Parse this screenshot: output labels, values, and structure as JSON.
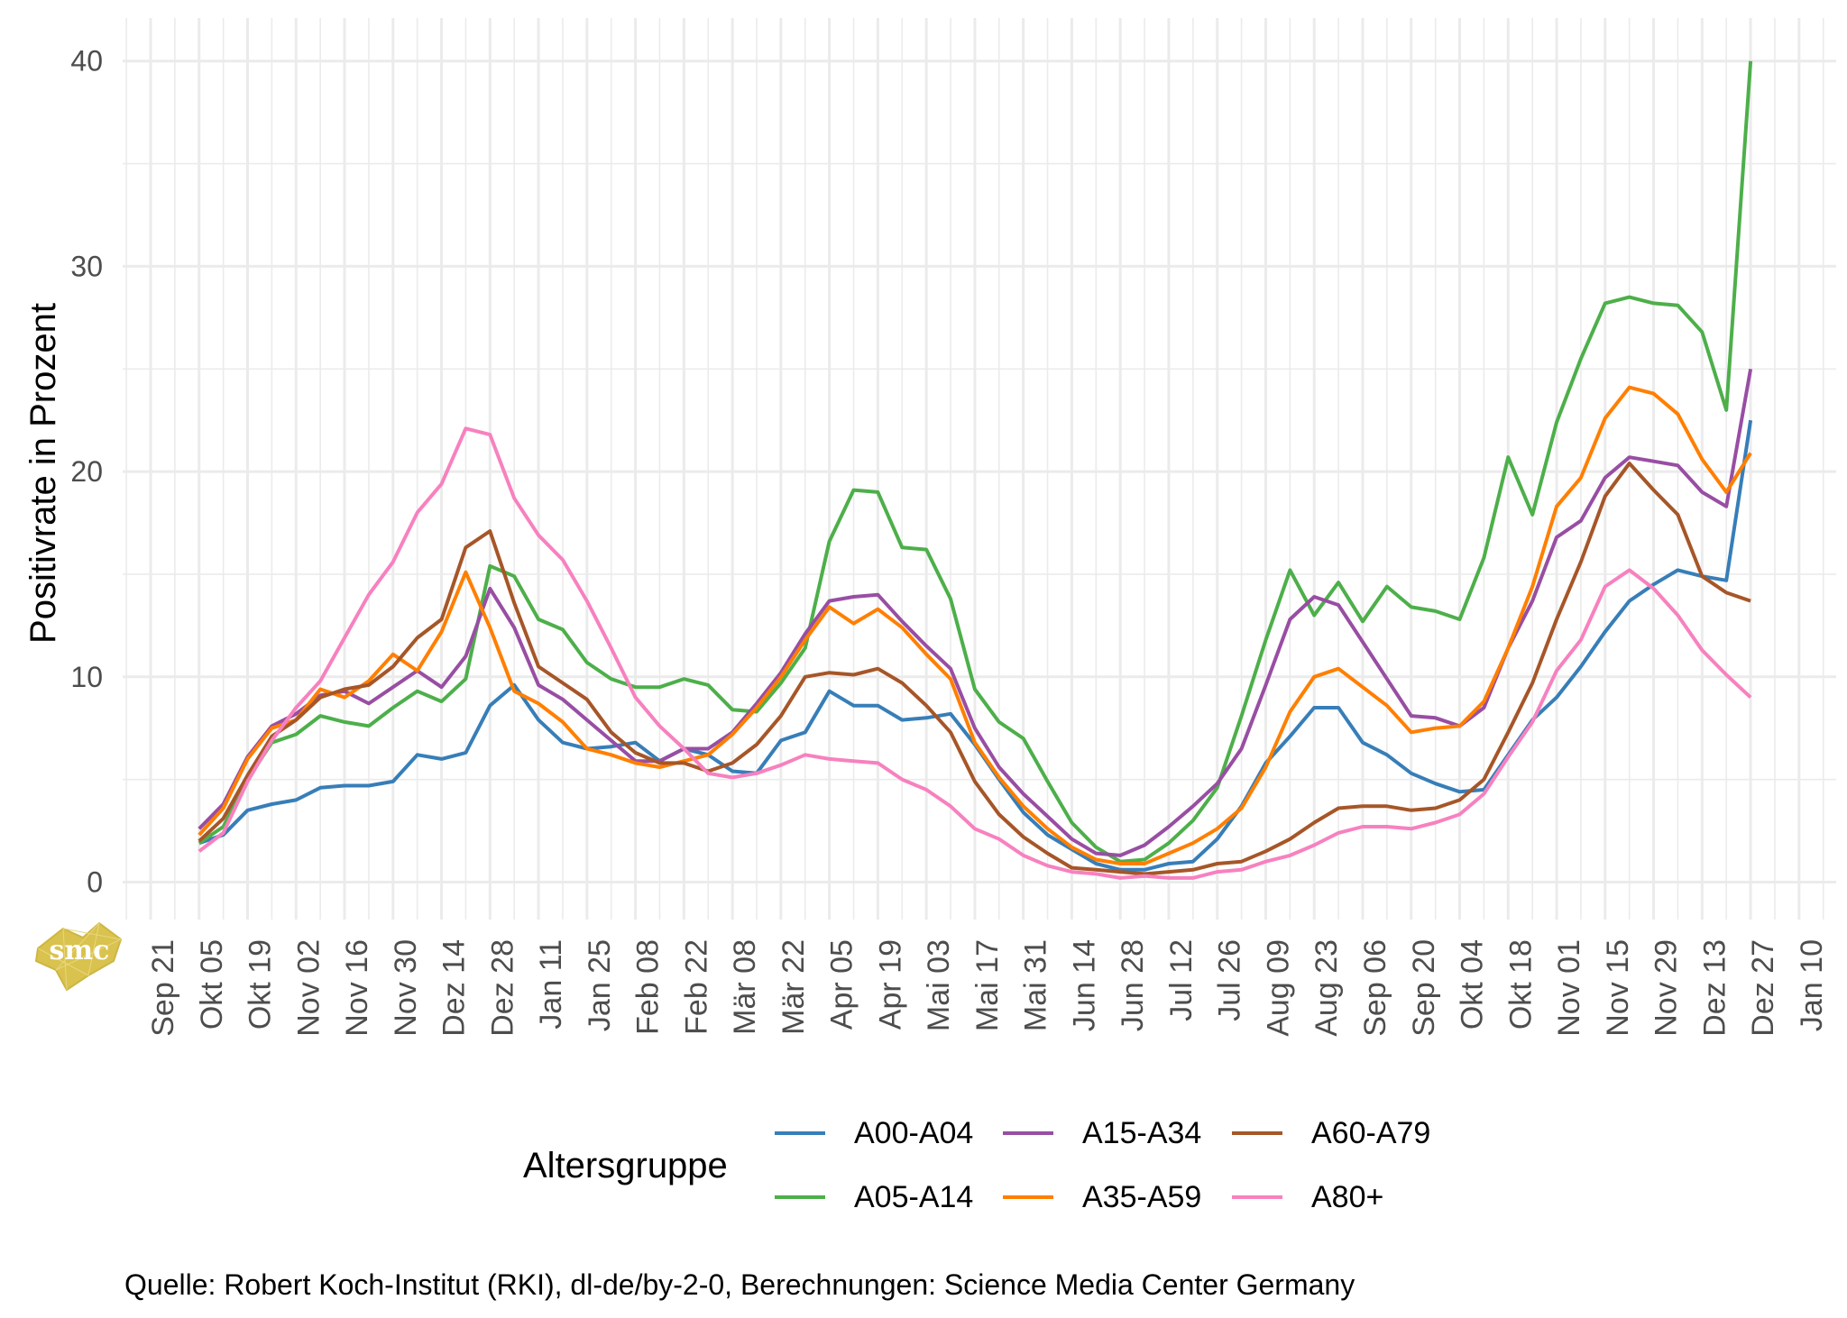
{
  "chart_data": {
    "type": "line",
    "title": "",
    "xlabel": "",
    "ylabel": "Positivrate in Prozent",
    "ylim": [
      0,
      40
    ],
    "y_ticks": [
      0,
      10,
      20,
      30,
      40
    ],
    "grid": true,
    "legend_position": "bottom",
    "legend_title": "Altersgruppe",
    "caption": "Quelle: Robert Koch-Institut (RKI), dl-de/by-2-0, Berechnungen: Science Media Center Germany",
    "logo_text": "smc",
    "x_ticks": [
      {
        "label": "Sep 21",
        "date": "2020-09-21"
      },
      {
        "label": "Okt 05",
        "date": "2020-10-05"
      },
      {
        "label": "Okt 19",
        "date": "2020-10-19"
      },
      {
        "label": "Nov 02",
        "date": "2020-11-02"
      },
      {
        "label": "Nov 16",
        "date": "2020-11-16"
      },
      {
        "label": "Nov 30",
        "date": "2020-11-30"
      },
      {
        "label": "Dez 14",
        "date": "2020-12-14"
      },
      {
        "label": "Dez 28",
        "date": "2020-12-28"
      },
      {
        "label": "Jan 11",
        "date": "2021-01-11"
      },
      {
        "label": "Jan 25",
        "date": "2021-01-25"
      },
      {
        "label": "Feb 08",
        "date": "2021-02-08"
      },
      {
        "label": "Feb 22",
        "date": "2021-02-22"
      },
      {
        "label": "Mär 08",
        "date": "2021-03-08"
      },
      {
        "label": "Mär 22",
        "date": "2021-03-22"
      },
      {
        "label": "Apr 05",
        "date": "2021-04-05"
      },
      {
        "label": "Apr 19",
        "date": "2021-04-19"
      },
      {
        "label": "Mai 03",
        "date": "2021-05-03"
      },
      {
        "label": "Mai 17",
        "date": "2021-05-17"
      },
      {
        "label": "Mai 31",
        "date": "2021-05-31"
      },
      {
        "label": "Jun 14",
        "date": "2021-06-14"
      },
      {
        "label": "Jun 28",
        "date": "2021-06-28"
      },
      {
        "label": "Jul 12",
        "date": "2021-07-12"
      },
      {
        "label": "Jul 26",
        "date": "2021-07-26"
      },
      {
        "label": "Aug 09",
        "date": "2021-08-09"
      },
      {
        "label": "Aug 23",
        "date": "2021-08-23"
      },
      {
        "label": "Sep 06",
        "date": "2021-09-06"
      },
      {
        "label": "Sep 20",
        "date": "2021-09-20"
      },
      {
        "label": "Okt 04",
        "date": "2021-10-04"
      },
      {
        "label": "Okt 18",
        "date": "2021-10-18"
      },
      {
        "label": "Nov 01",
        "date": "2021-11-01"
      },
      {
        "label": "Nov 15",
        "date": "2021-11-15"
      },
      {
        "label": "Nov 29",
        "date": "2021-11-29"
      },
      {
        "label": "Dez 13",
        "date": "2021-12-13"
      },
      {
        "label": "Dez 27",
        "date": "2021-12-27"
      },
      {
        "label": "Jan 10",
        "date": "2022-01-10"
      }
    ],
    "x": [
      "2020-10-05",
      "2020-10-12",
      "2020-10-19",
      "2020-10-26",
      "2020-11-02",
      "2020-11-09",
      "2020-11-16",
      "2020-11-23",
      "2020-11-30",
      "2020-12-07",
      "2020-12-14",
      "2020-12-21",
      "2020-12-28",
      "2021-01-04",
      "2021-01-11",
      "2021-01-18",
      "2021-01-25",
      "2021-02-01",
      "2021-02-08",
      "2021-02-15",
      "2021-02-22",
      "2021-03-01",
      "2021-03-08",
      "2021-03-15",
      "2021-03-22",
      "2021-03-29",
      "2021-04-05",
      "2021-04-12",
      "2021-04-19",
      "2021-04-26",
      "2021-05-03",
      "2021-05-10",
      "2021-05-17",
      "2021-05-24",
      "2021-05-31",
      "2021-06-07",
      "2021-06-14",
      "2021-06-21",
      "2021-06-28",
      "2021-07-05",
      "2021-07-12",
      "2021-07-19",
      "2021-07-26",
      "2021-08-02",
      "2021-08-09",
      "2021-08-16",
      "2021-08-23",
      "2021-08-30",
      "2021-09-06",
      "2021-09-13",
      "2021-09-20",
      "2021-09-27",
      "2021-10-04",
      "2021-10-11",
      "2021-10-18",
      "2021-10-25",
      "2021-11-01",
      "2021-11-08",
      "2021-11-15",
      "2021-11-22",
      "2021-11-29",
      "2021-12-06",
      "2021-12-13",
      "2021-12-20",
      "2021-12-27"
    ],
    "series": [
      {
        "name": "A00-A04",
        "color": "#377eb8",
        "values": [
          1.9,
          2.3,
          3.5,
          3.8,
          4.0,
          4.6,
          4.7,
          4.7,
          4.9,
          6.2,
          6.0,
          6.3,
          8.6,
          9.6,
          7.9,
          6.8,
          6.5,
          6.6,
          6.8,
          5.9,
          6.5,
          6.2,
          5.4,
          5.3,
          6.9,
          7.3,
          9.3,
          8.6,
          8.6,
          7.9,
          8.0,
          8.2,
          6.7,
          5.0,
          3.4,
          2.3,
          1.6,
          0.9,
          0.6,
          0.6,
          0.9,
          1.0,
          2.1,
          3.7,
          5.8,
          7.1,
          8.5,
          8.5,
          6.8,
          6.2,
          5.3,
          4.8,
          4.4,
          4.5,
          6.2,
          7.9,
          9.0,
          10.5,
          12.2,
          13.7,
          14.5,
          15.2,
          14.9,
          14.7,
          22.5
        ]
      },
      {
        "name": "A05-A14",
        "color": "#4daf4a",
        "values": [
          1.9,
          2.7,
          5.0,
          6.8,
          7.2,
          8.1,
          7.8,
          7.6,
          8.5,
          9.3,
          8.8,
          9.9,
          15.4,
          14.9,
          12.8,
          12.3,
          10.7,
          9.9,
          9.5,
          9.5,
          9.9,
          9.6,
          8.4,
          8.3,
          9.7,
          11.4,
          16.6,
          19.1,
          19.0,
          16.3,
          16.2,
          13.8,
          9.4,
          7.8,
          7.0,
          4.9,
          2.9,
          1.7,
          1.0,
          1.1,
          1.9,
          3.0,
          4.6,
          8.1,
          11.8,
          15.2,
          13.0,
          14.6,
          12.7,
          14.4,
          13.4,
          13.2,
          12.8,
          15.8,
          20.7,
          17.9,
          22.4,
          25.5,
          28.2,
          28.5,
          28.2,
          28.1,
          26.8,
          23.0,
          40.0
        ]
      },
      {
        "name": "A15-A34",
        "color": "#984ea3",
        "values": [
          2.6,
          3.8,
          6.1,
          7.6,
          8.2,
          9.1,
          9.3,
          8.7,
          9.5,
          10.3,
          9.5,
          11.0,
          14.3,
          12.4,
          9.6,
          8.9,
          7.9,
          6.9,
          5.9,
          5.9,
          6.5,
          6.5,
          7.3,
          8.7,
          10.2,
          12.1,
          13.7,
          13.9,
          14.0,
          12.7,
          11.5,
          10.4,
          7.5,
          5.6,
          4.3,
          3.2,
          2.1,
          1.4,
          1.3,
          1.8,
          2.7,
          3.7,
          4.8,
          6.5,
          9.6,
          12.8,
          13.9,
          13.5,
          11.7,
          9.9,
          8.1,
          8.0,
          7.6,
          8.5,
          11.4,
          13.7,
          16.8,
          17.6,
          19.7,
          20.7,
          20.5,
          20.3,
          19.0,
          18.3,
          25.0
        ]
      },
      {
        "name": "A35-A59",
        "color": "#ff7f00",
        "values": [
          2.3,
          3.6,
          6.0,
          7.5,
          7.9,
          9.4,
          9.0,
          9.8,
          11.1,
          10.3,
          12.2,
          15.1,
          12.4,
          9.3,
          8.7,
          7.8,
          6.5,
          6.2,
          5.8,
          5.6,
          5.9,
          6.2,
          7.2,
          8.5,
          10.0,
          11.8,
          13.4,
          12.6,
          13.3,
          12.4,
          11.1,
          9.9,
          6.8,
          5.1,
          3.7,
          2.6,
          1.7,
          1.1,
          0.9,
          0.9,
          1.4,
          1.9,
          2.6,
          3.6,
          5.6,
          8.3,
          10.0,
          10.4,
          9.5,
          8.6,
          7.3,
          7.5,
          7.6,
          8.8,
          11.4,
          14.4,
          18.3,
          19.7,
          22.6,
          24.1,
          23.8,
          22.8,
          20.6,
          19.0,
          20.9
        ]
      },
      {
        "name": "A60-A79",
        "color": "#a65628",
        "values": [
          2.0,
          3.1,
          5.2,
          7.1,
          7.9,
          9.0,
          9.4,
          9.6,
          10.5,
          11.9,
          12.8,
          16.3,
          17.1,
          13.6,
          10.5,
          9.7,
          8.9,
          7.3,
          6.3,
          5.8,
          5.8,
          5.4,
          5.8,
          6.7,
          8.1,
          10.0,
          10.2,
          10.1,
          10.4,
          9.7,
          8.6,
          7.3,
          4.9,
          3.3,
          2.2,
          1.4,
          0.7,
          0.6,
          0.5,
          0.4,
          0.5,
          0.6,
          0.9,
          1.0,
          1.5,
          2.1,
          2.9,
          3.6,
          3.7,
          3.7,
          3.5,
          3.6,
          4.0,
          5.0,
          7.3,
          9.7,
          12.8,
          15.6,
          18.8,
          20.4,
          19.1,
          17.9,
          14.9,
          14.1,
          13.7
        ]
      },
      {
        "name": "A80+",
        "color": "#f781bf",
        "values": [
          1.5,
          2.4,
          4.9,
          6.9,
          8.5,
          9.8,
          11.9,
          14.0,
          15.6,
          18.0,
          19.4,
          22.1,
          21.8,
          18.7,
          16.9,
          15.7,
          13.7,
          11.4,
          9.0,
          7.6,
          6.5,
          5.3,
          5.1,
          5.3,
          5.7,
          6.2,
          6.0,
          5.9,
          5.8,
          5.0,
          4.5,
          3.7,
          2.6,
          2.1,
          1.3,
          0.8,
          0.5,
          0.4,
          0.2,
          0.3,
          0.2,
          0.2,
          0.5,
          0.6,
          1.0,
          1.3,
          1.8,
          2.4,
          2.7,
          2.7,
          2.6,
          2.9,
          3.3,
          4.3,
          6.1,
          7.8,
          10.3,
          11.8,
          14.4,
          15.2,
          14.3,
          13.0,
          11.3,
          10.1,
          9.0
        ]
      }
    ]
  }
}
